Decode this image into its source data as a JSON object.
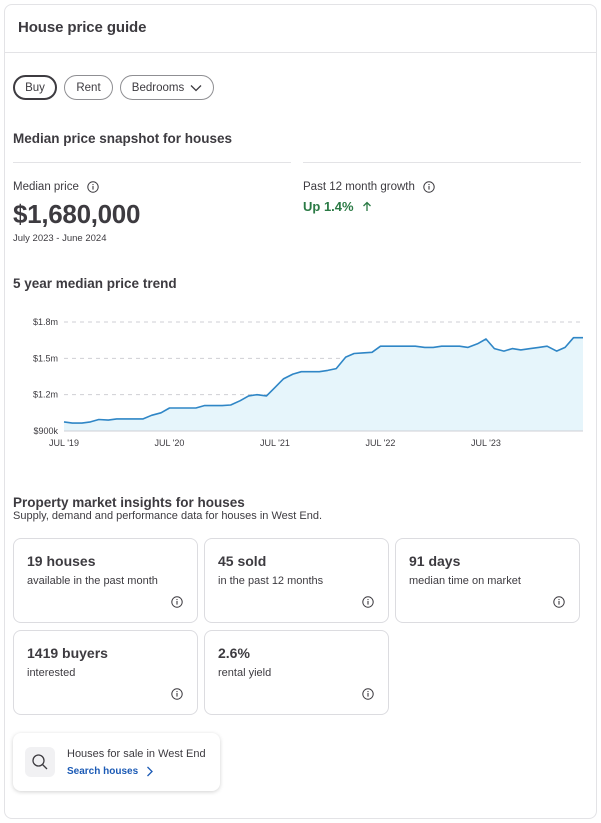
{
  "header": {
    "title": "House price guide"
  },
  "filters": {
    "buy_label": "Buy",
    "rent_label": "Rent",
    "bedrooms_label": "Bedrooms",
    "selected": "Buy"
  },
  "snapshot": {
    "title": "Median price snapshot for houses",
    "median_label": "Median price",
    "median_value": "$1,680,000",
    "period": "July 2023 - June 2024",
    "growth_label": "Past 12 month growth",
    "growth_value": "Up 1.4%"
  },
  "trend": {
    "title": "5 year median price trend"
  },
  "chart_data": {
    "type": "area",
    "title": "5 year median price trend",
    "xlabel": "",
    "ylabel": "",
    "y_tick_labels": [
      "$1.8m",
      "$1.5m",
      "$1.2m",
      "$900k"
    ],
    "y_ticks": [
      1800000,
      1500000,
      1200000,
      900000
    ],
    "x_tick_labels": [
      "JUL '19",
      "JUL '20",
      "JUL '21",
      "JUL '22",
      "JUL '23"
    ],
    "x_ticks": [
      2019.5,
      2020.5,
      2021.5,
      2022.5,
      2023.5
    ],
    "xlim": [
      2019.5,
      2024.42
    ],
    "ylim": [
      900000,
      1800000
    ],
    "grid": true,
    "colors": {
      "line": "#2f86c6",
      "fill": "#e6f5fb",
      "grid": "#cfcfd4"
    },
    "series": [
      {
        "x": [
          2019.5,
          2019.58,
          2019.67,
          2019.75,
          2019.83,
          2019.92,
          2020.0,
          2020.08,
          2020.17,
          2020.25,
          2020.33,
          2020.42,
          2020.5,
          2020.58,
          2020.67,
          2020.75,
          2020.83,
          2020.92,
          2021.0,
          2021.08,
          2021.17,
          2021.25,
          2021.33,
          2021.42,
          2021.5,
          2021.58,
          2021.67,
          2021.75,
          2021.83,
          2021.92,
          2022.0,
          2022.08,
          2022.17,
          2022.25,
          2022.33,
          2022.42,
          2022.5,
          2022.58,
          2022.67,
          2022.75,
          2022.83,
          2022.92,
          2023.0,
          2023.08,
          2023.17,
          2023.25,
          2023.33,
          2023.42,
          2023.5,
          2023.58,
          2023.67,
          2023.75,
          2023.83,
          2023.92,
          2024.0,
          2024.08,
          2024.17,
          2024.25,
          2024.33,
          2024.42
        ],
        "values": [
          975000,
          965000,
          965000,
          975000,
          995000,
          990000,
          1000000,
          1000000,
          1000000,
          1000000,
          1030000,
          1050000,
          1090000,
          1090000,
          1090000,
          1090000,
          1110000,
          1110000,
          1110000,
          1115000,
          1150000,
          1190000,
          1200000,
          1190000,
          1260000,
          1330000,
          1370000,
          1390000,
          1390000,
          1390000,
          1400000,
          1415000,
          1510000,
          1540000,
          1545000,
          1550000,
          1600000,
          1600000,
          1600000,
          1600000,
          1600000,
          1590000,
          1590000,
          1600000,
          1600000,
          1600000,
          1590000,
          1620000,
          1660000,
          1580000,
          1560000,
          1580000,
          1570000,
          1580000,
          1590000,
          1600000,
          1560000,
          1590000,
          1670000,
          1670000
        ]
      }
    ]
  },
  "insights": {
    "title": "Property market insights for houses",
    "subtitle": "Supply, demand and performance data for houses in West End.",
    "tiles": [
      {
        "value": "19 houses",
        "desc": "available in the past month"
      },
      {
        "value": "45 sold",
        "desc": "in the past 12 months"
      },
      {
        "value": "91 days",
        "desc": "median time on market"
      },
      {
        "value": "1419 buyers",
        "desc": "interested"
      },
      {
        "value": "2.6%",
        "desc": "rental yield"
      }
    ]
  },
  "search": {
    "title": "Houses for sale in West End",
    "link": "Search houses"
  }
}
